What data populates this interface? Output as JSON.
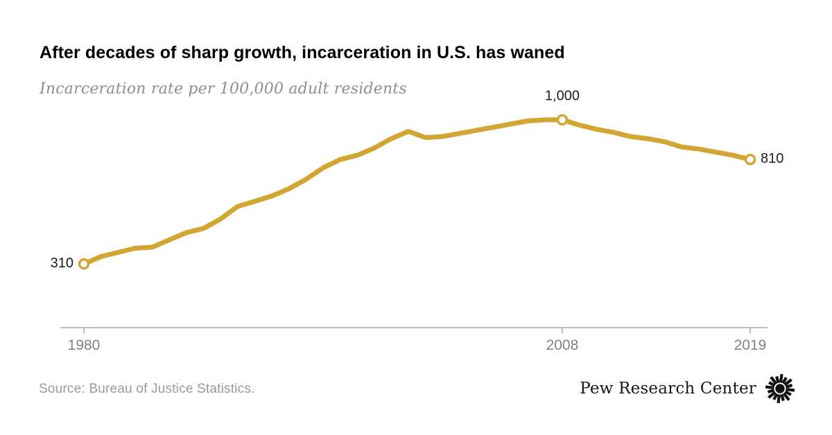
{
  "header": {
    "title": "After decades of sharp growth, incarceration in U.S. has waned",
    "subtitle": "Incarceration rate per 100,000 adult residents"
  },
  "chart_data": {
    "type": "line",
    "title": "After decades of sharp growth, incarceration in U.S. has waned",
    "subtitle": "Incarceration rate per 100,000 adult residents",
    "xlabel": "",
    "ylabel": "Incarceration rate per 100,000 adult residents",
    "x": [
      1980,
      1981,
      1982,
      1983,
      1984,
      1985,
      1986,
      1987,
      1988,
      1989,
      1990,
      1991,
      1992,
      1993,
      1994,
      1995,
      1996,
      1997,
      1998,
      1999,
      2000,
      2001,
      2002,
      2003,
      2004,
      2005,
      2006,
      2007,
      2008,
      2009,
      2010,
      2011,
      2012,
      2013,
      2014,
      2015,
      2016,
      2017,
      2018,
      2019
    ],
    "values": [
      310,
      345,
      365,
      385,
      390,
      425,
      460,
      480,
      525,
      585,
      610,
      635,
      670,
      715,
      770,
      810,
      830,
      865,
      910,
      945,
      915,
      920,
      935,
      950,
      965,
      980,
      995,
      1000,
      1000,
      975,
      955,
      940,
      920,
      910,
      895,
      870,
      860,
      845,
      830,
      810
    ],
    "x_range": [
      1980,
      2019
    ],
    "y_anchor_low": 310,
    "y_anchor_high": 1000,
    "grid": "off",
    "legend": "none",
    "xticks": [
      "1980",
      "2008",
      "2019"
    ],
    "xtick_years": [
      1980,
      2008,
      2019
    ],
    "point_labels": [
      {
        "year": 1980,
        "value": 310,
        "text": "310",
        "placement": "left"
      },
      {
        "year": 2008,
        "value": 1000,
        "text": "1,000",
        "placement": "top"
      },
      {
        "year": 2019,
        "value": 810,
        "text": "810",
        "placement": "right"
      }
    ],
    "line_color": "#d3a533",
    "marker_style": "open-circle",
    "axis_color": "#a6a6a6"
  },
  "footer": {
    "source": "Source: Bureau of Justice Statistics.",
    "logo_text": "Pew Research Center"
  },
  "colors": {
    "background": "#ffffff",
    "title_text": "#000000",
    "subtitle_text": "#8e8e8e",
    "label_text": "#1a1a1a",
    "axis_label_text": "#818181",
    "source_text": "#9a9a9a",
    "line": "#d3a533"
  }
}
